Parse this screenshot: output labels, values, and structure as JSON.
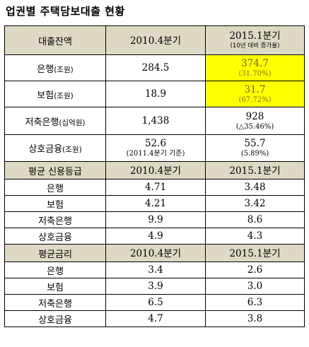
{
  "title": "업권별 주택담보대출 현황",
  "section_balance": {
    "header": {
      "label": "대출잔액",
      "col1": "2010.4분기",
      "col2": "2015.1분기",
      "col2_note": "(10년 대비 증가율)"
    },
    "rows": [
      {
        "name": "은행",
        "unit": "(조원)",
        "v2010": "284.5",
        "v2010_note": "",
        "v2015": "374.7",
        "v2015_note": "(31.70%)",
        "highlight": "#ffff00"
      },
      {
        "name": "보험",
        "unit": "(조원)",
        "v2010": "18.9",
        "v2010_note": "",
        "v2015": "31.7",
        "v2015_note": "(67.72%)",
        "highlight": "#ffff00"
      },
      {
        "name": "저축은행",
        "unit": "(십억원)",
        "v2010": "1,438",
        "v2010_note": "",
        "v2015": "928",
        "v2015_note": "(△35.46%)",
        "highlight": ""
      },
      {
        "name": "상호금융",
        "unit": "(조원)",
        "v2010": "52.6",
        "v2010_note": "(2011.4분기 기준)",
        "v2015": "55.7",
        "v2015_note": "(5.89%)",
        "highlight": ""
      }
    ]
  },
  "section_credit": {
    "header": {
      "label": "평균 신용등급",
      "col1": "2010.4분기",
      "col2": "2015.1분기"
    },
    "rows": [
      {
        "name": "은행",
        "v2010": "4.71",
        "v2015": "3.48"
      },
      {
        "name": "보험",
        "v2010": "4.21",
        "v2015": "3.42"
      },
      {
        "name": "저축은행",
        "v2010": "9.9",
        "v2015": "8.6"
      },
      {
        "name": "상호금융",
        "v2010": "4.9",
        "v2015": "4.3"
      }
    ]
  },
  "section_rate": {
    "header": {
      "label": "평균금리",
      "col1": "2010.4분기",
      "col2": "2015.1분기"
    },
    "rows": [
      {
        "name": "은행",
        "v2010": "3.4",
        "v2015": "2.6"
      },
      {
        "name": "보험",
        "v2010": "3.9",
        "v2015": "3.0"
      },
      {
        "name": "저축은행",
        "v2010": "6.5",
        "v2015": "6.3"
      },
      {
        "name": "상호금융",
        "v2010": "4.7",
        "v2015": "3.8"
      }
    ]
  },
  "colors": {
    "header_bg": "#ddd9c4",
    "highlight": "#ffff00",
    "border": "#000000"
  }
}
